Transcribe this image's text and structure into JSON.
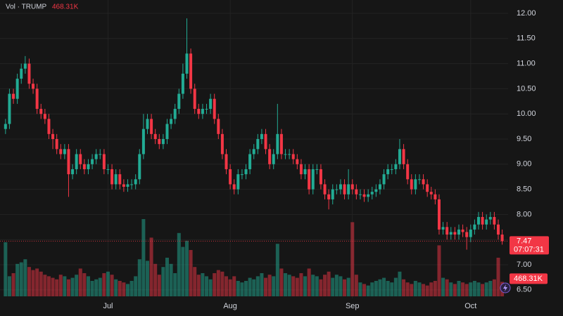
{
  "indicator": "Vol · TRUMP",
  "volume_label": "468.31K",
  "countdown": "07:07:31",
  "chart_data": {
    "type": "candlestick",
    "up_color": "#22ab94",
    "down_color": "#f23645",
    "grid": true,
    "ylim": [
      6.3,
      12.25
    ],
    "yticks": [
      {
        "value": 6.5,
        "label": "6.50"
      },
      {
        "value": 7,
        "label": "7.00"
      },
      {
        "value": 7.5,
        "label": "7.50"
      },
      {
        "value": 8,
        "label": "8.00"
      },
      {
        "value": 8.5,
        "label": "8.50"
      },
      {
        "value": 9,
        "label": "9.00"
      },
      {
        "value": 9.5,
        "label": "9.50"
      },
      {
        "value": 10,
        "label": "10.00"
      },
      {
        "value": 10.5,
        "label": "10.50"
      },
      {
        "value": 11,
        "label": "11.00"
      },
      {
        "value": 11.5,
        "label": "11.50"
      },
      {
        "value": 12,
        "label": "12.00"
      }
    ],
    "xlim": [
      -1.4,
      127.5
    ],
    "xticks": [
      {
        "value": 26,
        "label": "Jul"
      },
      {
        "value": 57,
        "label": "Aug"
      },
      {
        "value": 88,
        "label": "Sep"
      },
      {
        "value": 118,
        "label": "Oct"
      }
    ],
    "open": [
      9.7,
      9.8,
      10.4,
      10.3,
      10.7,
      10.9,
      11.0,
      10.6,
      10.5,
      10.1,
      10.0,
      9.9,
      9.6,
      9.5,
      9.3,
      9.2,
      9.3,
      8.8,
      8.9,
      9.2,
      9.0,
      8.9,
      9.0,
      9.1,
      9.2,
      9.2,
      8.9,
      8.9,
      8.6,
      8.8,
      8.6,
      8.55,
      8.6,
      8.6,
      8.7,
      9.2,
      9.7,
      9.9,
      9.6,
      9.5,
      9.4,
      9.5,
      9.8,
      9.9,
      10.1,
      10.4,
      10.8,
      11.2,
      10.5,
      10.1,
      10.0,
      10.1,
      10.1,
      10.3,
      9.9,
      9.6,
      9.2,
      8.9,
      8.6,
      8.5,
      8.8,
      8.8,
      8.9,
      9.2,
      9.3,
      9.5,
      9.6,
      9.3,
      9.0,
      9.2,
      9.6,
      9.2,
      9.2,
      9.2,
      9.1,
      9.0,
      8.8,
      8.9,
      8.5,
      8.9,
      8.9,
      8.6,
      8.4,
      8.3,
      8.5,
      8.5,
      8.6,
      8.4,
      8.6,
      8.5,
      8.4,
      8.4,
      8.35,
      8.4,
      8.45,
      8.5,
      8.6,
      8.8,
      8.9,
      8.9,
      9.0,
      9.3,
      9.0,
      8.7,
      8.5,
      8.7,
      8.7,
      8.6,
      8.45,
      8.4,
      8.3,
      7.7,
      7.75,
      7.6,
      7.65,
      7.6,
      7.7,
      7.65,
      7.55,
      7.7,
      7.8,
      7.95,
      7.8,
      7.9,
      7.95,
      7.8,
      7.6
    ],
    "high": [
      9.9,
      10.5,
      10.5,
      10.8,
      11.0,
      11.15,
      11.1,
      10.7,
      10.6,
      10.2,
      10.1,
      10.0,
      9.7,
      9.6,
      9.4,
      9.4,
      9.4,
      9.0,
      9.3,
      9.3,
      9.1,
      9.1,
      9.2,
      9.3,
      9.3,
      9.3,
      9.0,
      9.0,
      8.9,
      8.9,
      8.7,
      8.7,
      8.7,
      8.8,
      9.3,
      10.0,
      10.0,
      10.0,
      9.7,
      9.6,
      9.6,
      9.9,
      10.0,
      10.2,
      10.5,
      11.0,
      11.9,
      11.3,
      10.6,
      10.2,
      10.2,
      10.2,
      10.4,
      10.4,
      10.0,
      9.7,
      9.3,
      9.0,
      8.7,
      8.9,
      8.9,
      9.0,
      9.3,
      9.4,
      9.6,
      9.7,
      9.7,
      9.4,
      9.3,
      10.2,
      9.7,
      9.3,
      9.3,
      9.3,
      9.2,
      9.1,
      9.0,
      9.0,
      9.0,
      9.0,
      9.0,
      8.7,
      8.5,
      8.6,
      8.6,
      8.7,
      8.7,
      8.9,
      8.7,
      8.6,
      8.5,
      8.5,
      8.5,
      8.55,
      8.6,
      8.7,
      8.9,
      9.0,
      9.0,
      9.1,
      9.5,
      9.4,
      9.1,
      8.8,
      8.8,
      8.8,
      8.8,
      8.7,
      8.55,
      8.5,
      8.4,
      7.85,
      7.85,
      7.75,
      7.75,
      7.8,
      7.8,
      7.75,
      7.8,
      7.9,
      8.05,
      8.05,
      8.0,
      8.05,
      8.05,
      7.9,
      7.7
    ],
    "low": [
      9.6,
      9.7,
      10.2,
      10.2,
      10.6,
      10.8,
      10.5,
      10.4,
      10.0,
      9.9,
      9.8,
      9.5,
      9.3,
      9.2,
      9.1,
      9.1,
      8.35,
      8.7,
      8.8,
      8.9,
      8.8,
      8.8,
      8.9,
      9.0,
      9.1,
      8.8,
      8.8,
      8.5,
      8.5,
      8.5,
      8.45,
      8.45,
      8.5,
      8.5,
      8.6,
      9.1,
      9.6,
      9.5,
      9.4,
      9.3,
      9.3,
      9.4,
      9.7,
      9.8,
      10.0,
      10.3,
      10.7,
      10.4,
      10.0,
      9.9,
      9.9,
      10.0,
      10.0,
      9.8,
      9.5,
      9.1,
      8.8,
      8.5,
      8.4,
      8.4,
      8.7,
      8.7,
      8.8,
      9.1,
      9.2,
      9.4,
      9.2,
      8.9,
      8.9,
      9.1,
      9.1,
      9.1,
      9.1,
      9.0,
      8.9,
      8.7,
      8.7,
      8.4,
      8.4,
      8.8,
      8.5,
      8.3,
      8.1,
      8.2,
      8.4,
      8.4,
      8.3,
      8.3,
      8.4,
      8.3,
      8.3,
      8.25,
      8.25,
      8.3,
      8.35,
      8.4,
      8.5,
      8.7,
      8.8,
      8.8,
      8.9,
      8.9,
      8.6,
      8.4,
      8.4,
      8.6,
      8.5,
      8.35,
      8.3,
      8.2,
      7.6,
      7.6,
      7.5,
      7.5,
      7.5,
      7.5,
      7.55,
      7.3,
      7.45,
      7.6,
      7.7,
      7.7,
      7.7,
      7.8,
      7.7,
      7.5,
      7.4
    ],
    "close": [
      9.8,
      10.4,
      10.3,
      10.7,
      10.9,
      11.0,
      10.6,
      10.5,
      10.1,
      10.0,
      9.9,
      9.6,
      9.5,
      9.3,
      9.2,
      9.3,
      8.8,
      8.9,
      9.2,
      9.0,
      8.9,
      9.0,
      9.1,
      9.2,
      9.2,
      8.9,
      8.9,
      8.6,
      8.8,
      8.6,
      8.55,
      8.6,
      8.6,
      8.7,
      9.2,
      9.7,
      9.9,
      9.6,
      9.5,
      9.4,
      9.5,
      9.8,
      9.9,
      10.1,
      10.4,
      10.8,
      11.2,
      10.5,
      10.1,
      10.0,
      10.1,
      10.1,
      10.3,
      9.9,
      9.6,
      9.2,
      8.9,
      8.6,
      8.5,
      8.8,
      8.8,
      8.9,
      9.2,
      9.3,
      9.5,
      9.6,
      9.3,
      9.0,
      9.2,
      9.6,
      9.2,
      9.2,
      9.2,
      9.1,
      9.0,
      8.8,
      8.9,
      8.5,
      8.9,
      8.9,
      8.6,
      8.4,
      8.3,
      8.5,
      8.5,
      8.6,
      8.4,
      8.6,
      8.5,
      8.4,
      8.4,
      8.35,
      8.4,
      8.45,
      8.5,
      8.6,
      8.8,
      8.9,
      8.9,
      9.0,
      9.3,
      9.0,
      8.7,
      8.5,
      8.7,
      8.7,
      8.6,
      8.45,
      8.4,
      8.3,
      7.7,
      7.75,
      7.6,
      7.65,
      7.6,
      7.7,
      7.65,
      7.55,
      7.7,
      7.8,
      7.95,
      7.8,
      7.9,
      7.95,
      7.8,
      7.6,
      7.47
    ],
    "volume": [
      1750000,
      650000,
      750000,
      1050000,
      1100000,
      1200000,
      950000,
      850000,
      900000,
      800000,
      700000,
      650000,
      600000,
      550000,
      700000,
      650000,
      550000,
      600000,
      700000,
      900000,
      750000,
      650000,
      500000,
      550000,
      600000,
      750000,
      800000,
      700000,
      550000,
      500000,
      450000,
      400000,
      500000,
      650000,
      1200000,
      2500000,
      1150000,
      1900000,
      1050000,
      700000,
      950000,
      1250000,
      1050000,
      750000,
      2050000,
      1600000,
      1800000,
      1500000,
      950000,
      700000,
      750000,
      650000,
      550000,
      750000,
      850000,
      800000,
      650000,
      550000,
      650000,
      500000,
      450000,
      500000,
      600000,
      550000,
      650000,
      750000,
      600000,
      700000,
      650000,
      1700000,
      900000,
      750000,
      700000,
      650000,
      600000,
      750000,
      650000,
      900000,
      700000,
      650000,
      550000,
      700000,
      800000,
      600000,
      700000,
      650000,
      550000,
      600000,
      2400000,
      700000,
      450000,
      400000,
      350000,
      450000,
      500000,
      550000,
      600000,
      500000,
      450000,
      600000,
      800000,
      550000,
      450000,
      400000,
      500000,
      450000,
      400000,
      350000,
      450000,
      500000,
      1650000,
      600000,
      550000,
      450000,
      400000,
      500000,
      450000,
      400000,
      450000,
      500000,
      450000,
      400000,
      450000,
      500000,
      550000,
      1250000,
      468310
    ]
  }
}
